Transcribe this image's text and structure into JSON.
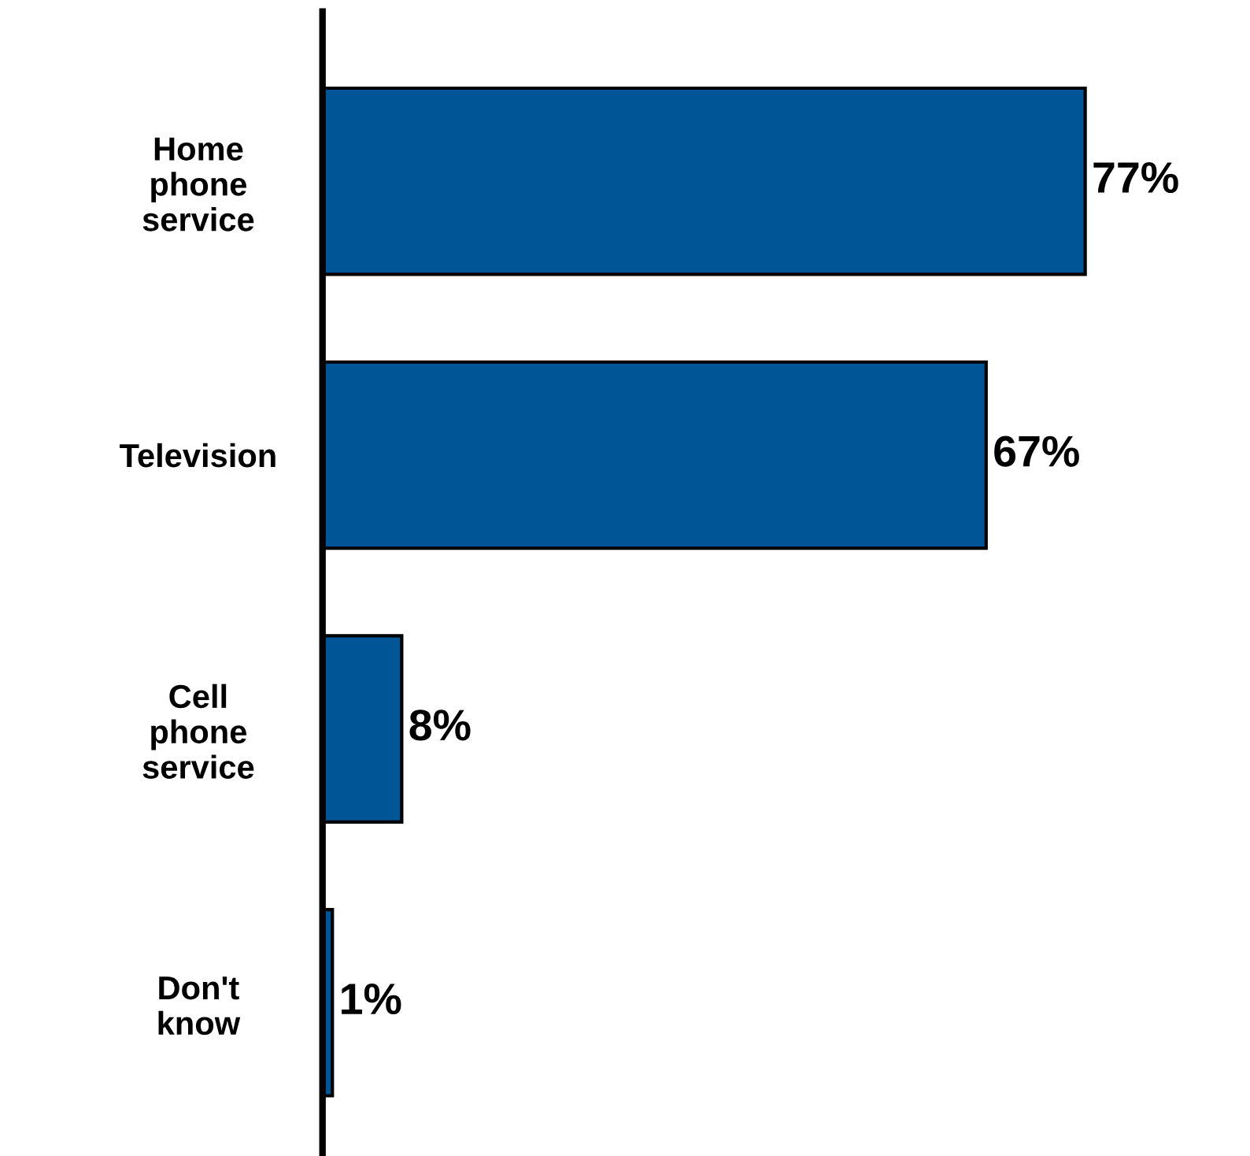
{
  "chart_data": {
    "type": "bar",
    "orientation": "horizontal",
    "categories": [
      "Home\nphone\nservice",
      "Television",
      "Cell\nphone\nservice",
      "Don't\nknow"
    ],
    "values": [
      77,
      67,
      8,
      1
    ],
    "value_labels": [
      "77%",
      "67%",
      "8%",
      "1%"
    ],
    "color": "#005596",
    "grid": false,
    "legend": false
  }
}
